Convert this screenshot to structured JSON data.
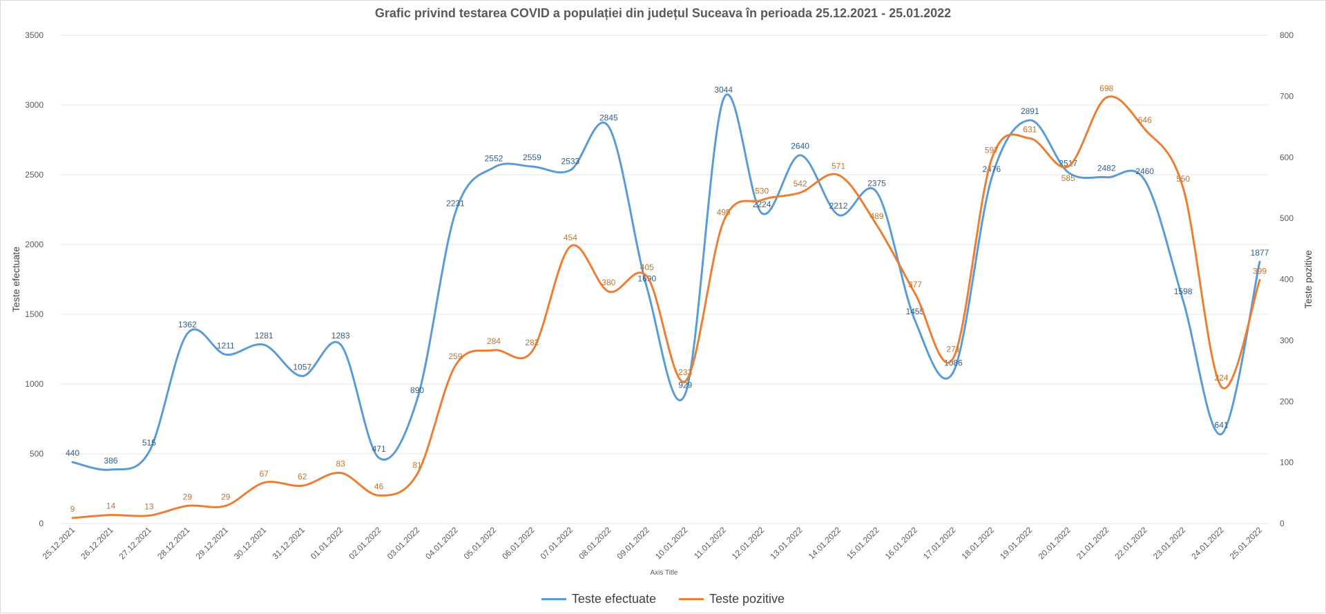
{
  "chart_data": {
    "type": "line",
    "title": "Grafic privind testarea COVID a populației din județul Suceava în perioada 25.12.2021 - 25.01.2022",
    "xlabel": "Axis Title",
    "ylabel": "Teste efectuate",
    "y2label": "Teste pozitive",
    "ylim": [
      0,
      3500
    ],
    "y2lim": [
      0,
      800
    ],
    "yticks": [
      0,
      500,
      1000,
      1500,
      2000,
      2500,
      3000,
      3500
    ],
    "y2ticks": [
      0,
      100,
      200,
      300,
      400,
      500,
      600,
      700,
      800
    ],
    "grid": true,
    "legend": "bottom",
    "x": [
      "25.12.2021",
      "26.12.2021",
      "27.12.2021",
      "28.12.2021",
      "29.12.2021",
      "30.12.2021",
      "31.12.2021",
      "01.01.2022",
      "02.01.2022",
      "03.01.2022",
      "04.01.2022",
      "05.01.2022",
      "06.01.2022",
      "07.01.2022",
      "08.01.2022",
      "09.01.2022",
      "10.01.2022",
      "11.01.2022",
      "12.01.2022",
      "13.01.2022",
      "14.01.2022",
      "15.01.2022",
      "16.01.2022",
      "17.01.2022",
      "18.01.2022",
      "19.01.2022",
      "20.01.2022",
      "21.01.2022",
      "22.01.2022",
      "23.01.2022",
      "24.01.2022",
      "25.01.2022"
    ],
    "series": [
      {
        "name": "Teste efectuate",
        "axis": "left",
        "color": "#5b9bd5",
        "label_color": "#2e5f8a",
        "values": [
          440,
          386,
          515,
          1362,
          1211,
          1281,
          1057,
          1283,
          471,
          890,
          2231,
          2552,
          2559,
          2533,
          2845,
          1690,
          929,
          3044,
          2224,
          2640,
          2212,
          2375,
          1455,
          1086,
          2476,
          2891,
          2517,
          2482,
          2460,
          1598,
          641,
          1877
        ]
      },
      {
        "name": "Teste pozitive",
        "axis": "right",
        "color": "#ed7d31",
        "label_color": "#c0742e",
        "values": [
          9,
          14,
          13,
          29,
          29,
          67,
          62,
          83,
          46,
          81,
          259,
          284,
          282,
          454,
          380,
          405,
          233,
          495,
          530,
          542,
          571,
          489,
          377,
          271,
          597,
          631,
          585,
          698,
          646,
          550,
          224,
          399
        ]
      }
    ]
  }
}
